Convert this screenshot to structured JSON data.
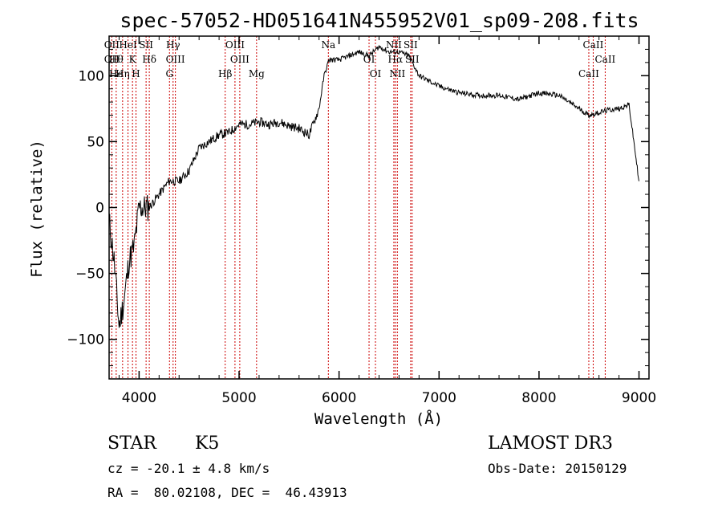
{
  "chart_data": {
    "type": "line",
    "title": "spec-57052-HD051641N455952V01_sp09-208.fits",
    "xlabel": "Wavelength (Å)",
    "ylabel": "Flux (relative)",
    "xlim": [
      3700,
      9100
    ],
    "ylim": [
      -130,
      130
    ],
    "xticks": [
      4000,
      5000,
      6000,
      7000,
      8000,
      9000
    ],
    "yticks": [
      -100,
      -50,
      0,
      50,
      100
    ],
    "series": [
      {
        "name": "spectrum",
        "x": [
          3700,
          3750,
          3800,
          3850,
          3900,
          3950,
          4000,
          4100,
          4200,
          4300,
          4400,
          4500,
          4600,
          4700,
          4800,
          4900,
          5000,
          5100,
          5200,
          5300,
          5400,
          5500,
          5600,
          5700,
          5800,
          5850,
          5900,
          6000,
          6100,
          6200,
          6300,
          6400,
          6500,
          6600,
          6700,
          6800,
          7000,
          7200,
          7400,
          7600,
          7800,
          8000,
          8200,
          8400,
          8500,
          8600,
          8700,
          8800,
          8900,
          9000
        ],
        "y": [
          -10,
          -40,
          -90,
          -70,
          -40,
          -30,
          0,
          0,
          10,
          20,
          20,
          28,
          45,
          50,
          55,
          57,
          63,
          63,
          65,
          63,
          65,
          62,
          60,
          55,
          75,
          100,
          112,
          112,
          115,
          118,
          115,
          122,
          118,
          118,
          115,
          100,
          92,
          87,
          85,
          85,
          82,
          87,
          85,
          75,
          70,
          72,
          74,
          75,
          78,
          20
        ]
      }
    ],
    "line_markers": [
      {
        "wavelength": 3727,
        "labels": [
          "OII",
          "OII"
        ]
      },
      {
        "wavelength": 3771,
        "labels": [
          "Hθ",
          "He"
        ]
      },
      {
        "wavelength": 3835,
        "labels": [
          "Hη"
        ]
      },
      {
        "wavelength": 3889,
        "labels": [
          "HeI"
        ]
      },
      {
        "wavelength": 3934,
        "labels": [
          "K"
        ]
      },
      {
        "wavelength": 3969,
        "labels": [
          "H"
        ]
      },
      {
        "wavelength": 4070,
        "labels": [
          "SII"
        ]
      },
      {
        "wavelength": 4102,
        "labels": [
          "Hδ"
        ]
      },
      {
        "wavelength": 4304,
        "labels": [
          "G"
        ]
      },
      {
        "wavelength": 4340,
        "labels": [
          "Hγ"
        ]
      },
      {
        "wavelength": 4363,
        "labels": [
          "OIII"
        ]
      },
      {
        "wavelength": 4861,
        "labels": [
          "Hβ"
        ]
      },
      {
        "wavelength": 4959,
        "labels": [
          "OIII"
        ]
      },
      {
        "wavelength": 5007,
        "labels": [
          "OIII"
        ]
      },
      {
        "wavelength": 5175,
        "labels": [
          "Mg"
        ]
      },
      {
        "wavelength": 5893,
        "labels": [
          "Na"
        ]
      },
      {
        "wavelength": 6300,
        "labels": [
          "OI"
        ]
      },
      {
        "wavelength": 6364,
        "labels": [
          "OI"
        ]
      },
      {
        "wavelength": 6548,
        "labels": [
          "NII"
        ]
      },
      {
        "wavelength": 6563,
        "labels": [
          "Hα"
        ]
      },
      {
        "wavelength": 6583,
        "labels": [
          "NII"
        ]
      },
      {
        "wavelength": 6716,
        "labels": [
          "SII"
        ]
      },
      {
        "wavelength": 6731,
        "labels": [
          "SII"
        ]
      },
      {
        "wavelength": 8498,
        "labels": [
          "CaII"
        ]
      },
      {
        "wavelength": 8542,
        "labels": [
          "CaII"
        ]
      },
      {
        "wavelength": 8662,
        "labels": [
          "CaII"
        ]
      }
    ],
    "marker_color": "#cc0000",
    "line_color": "#000000"
  },
  "info": {
    "object_class": "STAR",
    "subclass": "K5",
    "survey": "LAMOST DR3",
    "cz": "cz = -20.1 ± 4.8 km/s",
    "obs_date": "Obs-Date: 20150129",
    "coords": "RA =  80.02108, DEC =  46.43913"
  }
}
